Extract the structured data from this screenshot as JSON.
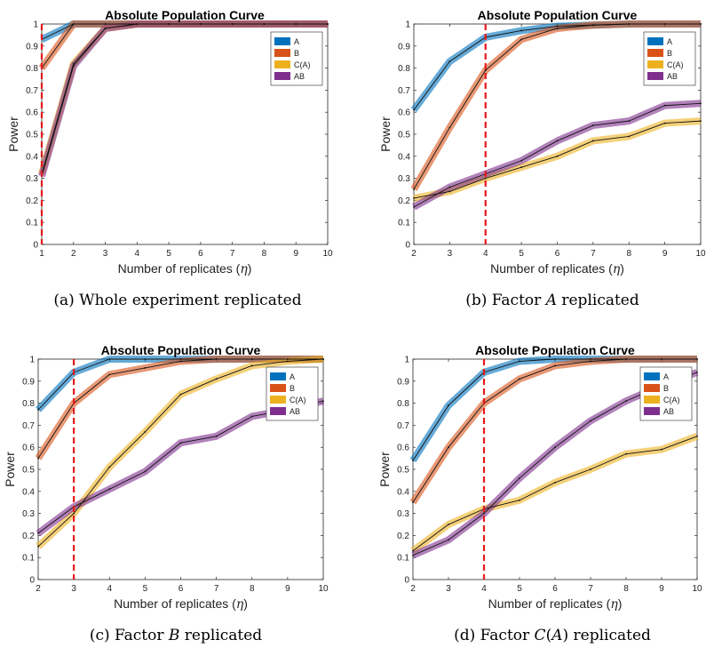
{
  "chart_data": [
    {
      "type": "line",
      "title": "Absolute Population Curve",
      "caption": "(a) Whole experiment replicated",
      "xlabel": "Number of replicates (η)",
      "ylabel": "Power",
      "x": [
        1,
        2,
        3,
        4,
        5,
        6,
        7,
        8,
        9,
        10
      ],
      "xlim": [
        1,
        10
      ],
      "ylim": [
        0,
        1
      ],
      "yticks": [
        "0",
        "0.1",
        "0.2",
        "0.3",
        "0.4",
        "0.5",
        "0.6",
        "0.7",
        "0.8",
        "0.9",
        "1"
      ],
      "xticks": [
        "1",
        "2",
        "3",
        "4",
        "5",
        "6",
        "7",
        "8",
        "9",
        "10"
      ],
      "reference_line_x": 1,
      "legend": "top-right",
      "series": [
        {
          "name": "A",
          "color": "#0072BD",
          "values": [
            0.93,
            1,
            1,
            1,
            1,
            1,
            1,
            1,
            1,
            1
          ]
        },
        {
          "name": "B",
          "color": "#D95319",
          "values": [
            0.8,
            1,
            1,
            1,
            1,
            1,
            1,
            1,
            1,
            1
          ]
        },
        {
          "name": "C(A)",
          "color": "#EDB120",
          "values": [
            0.32,
            0.82,
            0.98,
            1,
            1,
            1,
            1,
            1,
            1,
            1
          ]
        },
        {
          "name": "AB",
          "color": "#7E2F8E",
          "values": [
            0.31,
            0.81,
            0.98,
            1,
            1,
            1,
            1,
            1,
            1,
            1
          ]
        }
      ]
    },
    {
      "type": "line",
      "title": "Absolute Population Curve",
      "caption": "(b) Factor A replicated",
      "xlabel": "Number of replicates (η)",
      "ylabel": "Power",
      "x": [
        2,
        3,
        4,
        5,
        6,
        7,
        8,
        9,
        10
      ],
      "xlim": [
        2,
        10
      ],
      "ylim": [
        0,
        1
      ],
      "yticks": [
        "0",
        "0.1",
        "0.2",
        "0.3",
        "0.4",
        "0.5",
        "0.6",
        "0.7",
        "0.8",
        "0.9",
        "1"
      ],
      "xticks": [
        "2",
        "3",
        "4",
        "5",
        "6",
        "7",
        "8",
        "9",
        "10"
      ],
      "reference_line_x": 4,
      "legend": "top-right",
      "series": [
        {
          "name": "A",
          "color": "#0072BD",
          "values": [
            0.61,
            0.83,
            0.94,
            0.97,
            0.99,
            0.995,
            1,
            1,
            1
          ]
        },
        {
          "name": "B",
          "color": "#D95319",
          "values": [
            0.25,
            0.53,
            0.79,
            0.93,
            0.98,
            0.995,
            1,
            1,
            1
          ]
        },
        {
          "name": "C(A)",
          "color": "#EDB120",
          "values": [
            0.21,
            0.24,
            0.3,
            0.35,
            0.4,
            0.47,
            0.49,
            0.55,
            0.56
          ]
        },
        {
          "name": "AB",
          "color": "#7E2F8E",
          "values": [
            0.17,
            0.26,
            0.32,
            0.38,
            0.47,
            0.54,
            0.56,
            0.63,
            0.64
          ]
        }
      ]
    },
    {
      "type": "line",
      "title": "Absolute Population Curve",
      "caption": "(c) Factor B replicated",
      "xlabel": "Number of replicates (η)",
      "ylabel": "Power",
      "x": [
        2,
        3,
        4,
        5,
        6,
        7,
        8,
        9,
        10
      ],
      "xlim": [
        2,
        10
      ],
      "ylim": [
        0,
        1
      ],
      "yticks": [
        "0",
        "0.1",
        "0.2",
        "0.3",
        "0.4",
        "0.5",
        "0.6",
        "0.7",
        "0.8",
        "0.9",
        "1"
      ],
      "xticks": [
        "2",
        "3",
        "4",
        "5",
        "6",
        "7",
        "8",
        "9",
        "10"
      ],
      "reference_line_x": 3,
      "legend": "top-right",
      "series": [
        {
          "name": "A",
          "color": "#0072BD",
          "values": [
            0.77,
            0.94,
            1,
            1,
            1,
            1,
            1,
            1,
            1
          ]
        },
        {
          "name": "B",
          "color": "#D95319",
          "values": [
            0.55,
            0.8,
            0.93,
            0.96,
            0.99,
            1,
            1,
            1,
            1
          ]
        },
        {
          "name": "C(A)",
          "color": "#EDB120",
          "values": [
            0.15,
            0.3,
            0.51,
            0.67,
            0.84,
            0.91,
            0.97,
            0.99,
            1
          ]
        },
        {
          "name": "AB",
          "color": "#7E2F8E",
          "values": [
            0.21,
            0.33,
            0.41,
            0.49,
            0.62,
            0.65,
            0.74,
            0.77,
            0.81
          ]
        }
      ]
    },
    {
      "type": "line",
      "title": "Absolute Population Curve",
      "caption": "(d) Factor C(A) replicated",
      "xlabel": "Number of replicates (η)",
      "ylabel": "Power",
      "x": [
        2,
        3,
        4,
        5,
        6,
        7,
        8,
        9,
        10
      ],
      "xlim": [
        2,
        10
      ],
      "ylim": [
        0,
        1
      ],
      "yticks": [
        "0",
        "0.1",
        "0.2",
        "0.3",
        "0.4",
        "0.5",
        "0.6",
        "0.7",
        "0.8",
        "0.9",
        "1"
      ],
      "xticks": [
        "2",
        "3",
        "4",
        "5",
        "6",
        "7",
        "8",
        "9",
        "10"
      ],
      "reference_line_x": 4,
      "legend": "top-right",
      "series": [
        {
          "name": "A",
          "color": "#0072BD",
          "values": [
            0.54,
            0.79,
            0.94,
            0.99,
            1,
            1,
            1,
            1,
            1
          ]
        },
        {
          "name": "B",
          "color": "#D95319",
          "values": [
            0.35,
            0.6,
            0.8,
            0.91,
            0.97,
            0.99,
            1,
            1,
            1
          ]
        },
        {
          "name": "C(A)",
          "color": "#EDB120",
          "values": [
            0.13,
            0.25,
            0.32,
            0.36,
            0.44,
            0.5,
            0.57,
            0.59,
            0.65
          ]
        },
        {
          "name": "AB",
          "color": "#7E2F8E",
          "values": [
            0.11,
            0.18,
            0.3,
            0.46,
            0.6,
            0.72,
            0.81,
            0.88,
            0.94
          ]
        }
      ]
    }
  ]
}
